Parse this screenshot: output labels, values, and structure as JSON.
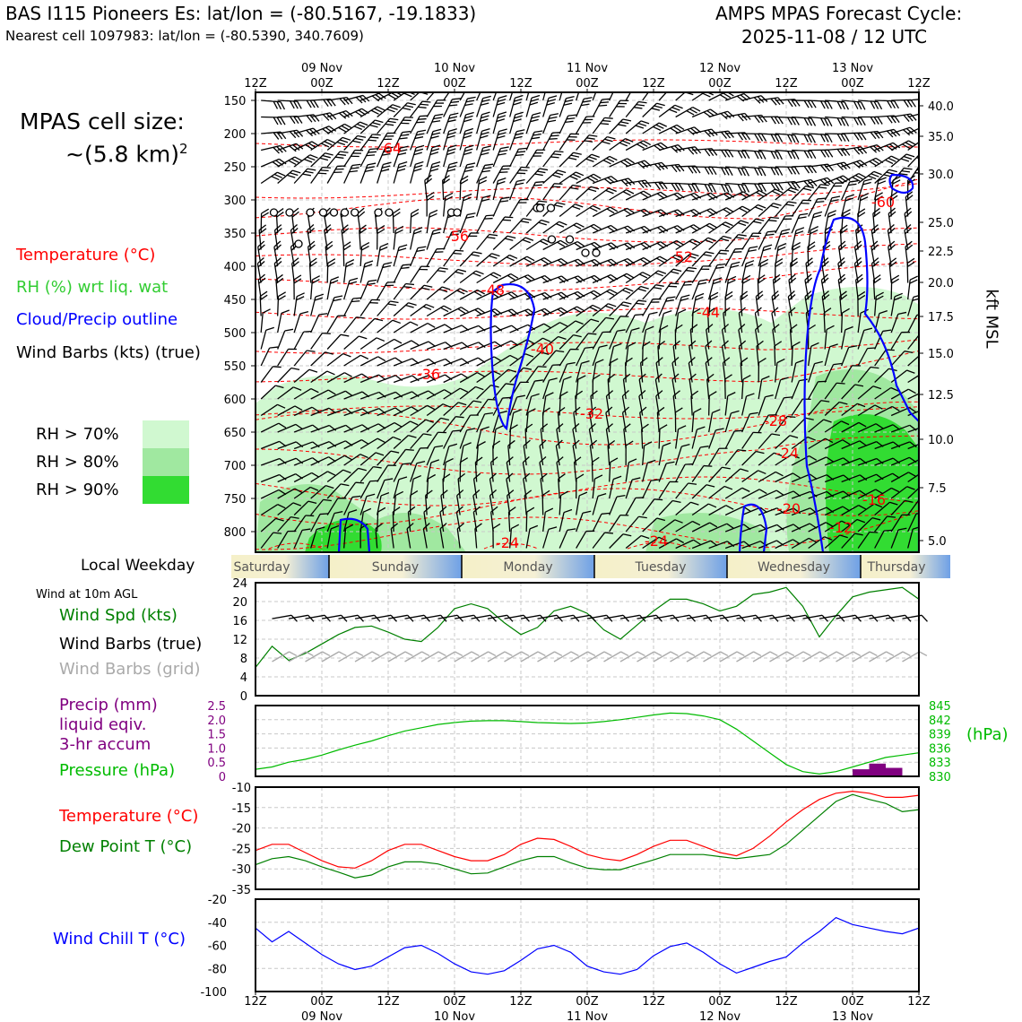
{
  "header": {
    "station": "BAS I115 Pioneers Es: lat/lon = (-80.5167, -19.1833)",
    "nearest_cell": "Nearest cell 1097983: lat/lon = (-80.5390, 340.7609)",
    "cycle_line1": "AMPS MPAS Forecast Cycle:",
    "cycle_line2": "2025-11-08 / 12 UTC"
  },
  "cell_size": {
    "line1": "MPAS cell size:",
    "line2": "~(5.8 km)",
    "exponent": "2"
  },
  "legend_upper": {
    "temperature": "Temperature (°C)",
    "rh": "RH (%) wrt liq. wat",
    "cloud": "Cloud/Precip outline",
    "wind": "Wind Barbs (kts) (true)"
  },
  "rh_legend": [
    {
      "label": "RH > 70%",
      "color": "#d0f8d0"
    },
    {
      "label": "RH > 80%",
      "color": "#a0e8a0"
    },
    {
      "label": "RH > 90%",
      "color": "#32dc32"
    }
  ],
  "colors": {
    "temp": "#ff0000",
    "rh_green": "#32cd32",
    "cloud": "#0000ff",
    "dew": "#008000",
    "precip": "#800080",
    "pressure": "#00bb00",
    "grid_barb": "#aaaaaa"
  },
  "time_axis": {
    "ticks": [
      "12Z",
      "00Z",
      "12Z",
      "00Z",
      "12Z",
      "00Z",
      "12Z",
      "00Z",
      "12Z",
      "00Z",
      "12Z"
    ],
    "dates": [
      "09 Nov",
      "10 Nov",
      "11 Nov",
      "12 Nov",
      "13 Nov"
    ]
  },
  "weekday": {
    "title": "Local Weekday",
    "days": [
      "Saturday",
      "Sunday",
      "Monday",
      "Tuesday",
      "Wednesday",
      "Thursday"
    ]
  },
  "cross_section": {
    "pressure_ticks": [
      150,
      200,
      250,
      300,
      350,
      400,
      450,
      500,
      550,
      600,
      650,
      700,
      750,
      800
    ],
    "height_ticks": [
      "40.0",
      "35.0",
      "30.0",
      "25.0",
      "22.5",
      "20.0",
      "17.5",
      "15.0",
      "12.5",
      "10.0",
      "7.5",
      "5.0"
    ],
    "height_label": "kft MSL",
    "temp_labels": [
      "-64",
      "-60",
      "-56",
      "-52",
      "-48",
      "-44",
      "-40",
      "-36",
      "-32",
      "-28",
      "-24",
      "-20",
      "-16",
      "-12",
      "-24",
      "-24"
    ]
  },
  "wind10m": {
    "caption": "Wind at 10m AGL",
    "legend": [
      "Wind Spd (kts)",
      "Wind Barbs (true)",
      "Wind Barbs (grid)"
    ],
    "yticks": [
      0,
      4,
      8,
      12,
      16,
      20,
      24
    ]
  },
  "precip_press": {
    "legend": [
      "Precip (mm)",
      "liquid eqiv.",
      "3-hr accum",
      "Pressure (hPa)"
    ],
    "precip_ticks": [
      "0",
      "0.5",
      "1.0",
      "1.5",
      "2.0",
      "2.5"
    ],
    "pressure_ticks": [
      "830",
      "833",
      "836",
      "839",
      "842",
      "845"
    ],
    "pressure_unit": "(hPa)"
  },
  "temp_panel": {
    "legend": [
      "Temperature (°C)",
      "Dew Point T (°C)"
    ],
    "yticks": [
      -35,
      -30,
      -25,
      -20,
      -15,
      -10
    ]
  },
  "windchill_panel": {
    "legend": "Wind Chill T (°C)",
    "yticks": [
      -100,
      -80,
      -60,
      -40,
      -20
    ]
  },
  "chart_data": [
    {
      "type": "line",
      "title": "Wind at 10m AGL",
      "x_hours": [
        0,
        3,
        6,
        9,
        12,
        15,
        18,
        21,
        24,
        27,
        30,
        33,
        36,
        39,
        42,
        45,
        48,
        51,
        54,
        57,
        60,
        63,
        66,
        69,
        72,
        75,
        78,
        81,
        84,
        87,
        90,
        93,
        96,
        99,
        102,
        105,
        108,
        111,
        114,
        117,
        120
      ],
      "series": [
        {
          "name": "Wind Spd (kts)",
          "values": [
            6,
            10.5,
            7.5,
            9,
            11,
            13,
            14.5,
            14.8,
            13.5,
            12,
            11.5,
            14.5,
            18.5,
            19.5,
            18.5,
            15.5,
            13,
            14.5,
            18,
            19,
            17.5,
            14,
            12,
            15,
            18,
            20.5,
            20.5,
            19.5,
            18,
            19,
            21.5,
            22,
            23,
            19,
            12.5,
            17,
            21,
            22,
            22.5,
            23,
            20.5
          ]
        }
      ],
      "ylim": [
        0,
        24
      ]
    },
    {
      "type": "line",
      "title": "Pressure and 3-hr Precip",
      "x_hours": [
        0,
        3,
        6,
        9,
        12,
        15,
        18,
        21,
        24,
        27,
        30,
        33,
        36,
        39,
        42,
        45,
        48,
        51,
        54,
        57,
        60,
        63,
        66,
        69,
        72,
        75,
        78,
        81,
        84,
        87,
        90,
        93,
        96,
        99,
        102,
        105,
        108,
        111,
        114,
        117,
        120
      ],
      "series": [
        {
          "name": "Pressure (hPa)",
          "values": [
            831.5,
            832,
            833,
            833.6,
            834.5,
            835.6,
            836.6,
            837.5,
            838.6,
            839.6,
            840.3,
            841,
            841.4,
            841.7,
            841.8,
            841.8,
            841.6,
            841.4,
            841.3,
            841.2,
            841.3,
            841.6,
            842,
            842.5,
            843,
            843.4,
            843.3,
            842.8,
            842,
            840,
            837.5,
            835,
            832.5,
            831,
            830.5,
            831,
            832,
            833,
            834,
            834.5,
            835
          ]
        },
        {
          "name": "Precip (mm)",
          "bars": [
            {
              "hour": 108,
              "value": 0.25
            },
            {
              "hour": 111,
              "value": 0.45
            },
            {
              "hour": 114,
              "value": 0.3
            }
          ]
        }
      ],
      "ylim_precip": [
        0,
        2.5
      ],
      "ylim_pressure": [
        830,
        845
      ]
    },
    {
      "type": "line",
      "title": "Temperature and Dew Point",
      "x_hours": [
        0,
        3,
        6,
        9,
        12,
        15,
        18,
        21,
        24,
        27,
        30,
        33,
        36,
        39,
        42,
        45,
        48,
        51,
        54,
        57,
        60,
        63,
        66,
        69,
        72,
        75,
        78,
        81,
        84,
        87,
        90,
        93,
        96,
        99,
        102,
        105,
        108,
        111,
        114,
        117,
        120
      ],
      "series": [
        {
          "name": "Temperature (°C)",
          "values": [
            -25.5,
            -24,
            -24,
            -26,
            -28,
            -29.5,
            -29.8,
            -28,
            -25.5,
            -24,
            -24,
            -25.5,
            -27,
            -28,
            -28,
            -26.5,
            -24,
            -22.5,
            -22.8,
            -24.5,
            -26.5,
            -27.5,
            -28,
            -26.5,
            -24.5,
            -23,
            -23,
            -24.5,
            -26,
            -26.8,
            -25,
            -22,
            -18.5,
            -15.5,
            -13,
            -11.5,
            -11,
            -11.5,
            -12.5,
            -12.5,
            -12
          ]
        },
        {
          "name": "Dew Point T (°C)",
          "values": [
            -29,
            -27.5,
            -27,
            -28,
            -29.5,
            -30.8,
            -32.2,
            -31.5,
            -29.5,
            -28.3,
            -28.3,
            -28.8,
            -30,
            -31.2,
            -31,
            -29.5,
            -28,
            -27,
            -27,
            -28.5,
            -29.8,
            -30.2,
            -30.2,
            -29,
            -27.8,
            -26.5,
            -26.5,
            -26.5,
            -27,
            -27.5,
            -27,
            -26.5,
            -24,
            -20.5,
            -17,
            -13.5,
            -11.8,
            -13,
            -14,
            -16,
            -15.5
          ]
        }
      ],
      "ylim": [
        -35,
        -10
      ]
    },
    {
      "type": "line",
      "title": "Wind Chill",
      "x_hours": [
        0,
        3,
        6,
        9,
        12,
        15,
        18,
        21,
        24,
        27,
        30,
        33,
        36,
        39,
        42,
        45,
        48,
        51,
        54,
        57,
        60,
        63,
        66,
        69,
        72,
        75,
        78,
        81,
        84,
        87,
        90,
        93,
        96,
        99,
        102,
        105,
        108,
        111,
        114,
        117,
        120
      ],
      "series": [
        {
          "name": "Wind Chill T (°C)",
          "values": [
            -45,
            -57,
            -48,
            -58,
            -68,
            -76,
            -81,
            -78,
            -70,
            -62,
            -60,
            -67,
            -76,
            -83,
            -85,
            -82,
            -73,
            -63,
            -60,
            -66,
            -78,
            -83,
            -85,
            -81,
            -69,
            -61,
            -58,
            -66,
            -76,
            -84,
            -79,
            -74,
            -70,
            -58,
            -48,
            -36,
            -42,
            -45,
            -48,
            -50,
            -45
          ]
        }
      ],
      "ylim": [
        -100,
        -20
      ]
    }
  ]
}
